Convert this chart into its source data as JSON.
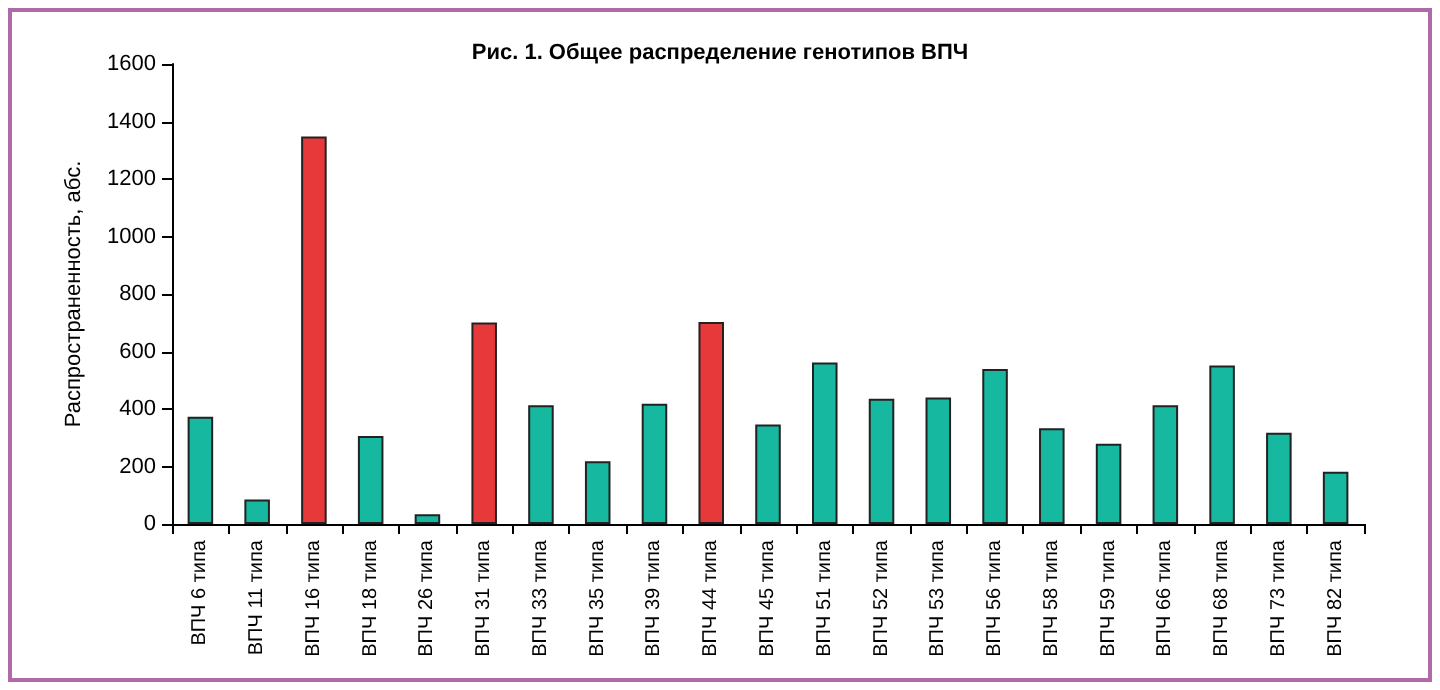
{
  "chart_data": {
    "type": "bar",
    "title": "Рис. 1. Общее распределение генотипов ВПЧ",
    "ylabel": "Распространенность, абс.",
    "categories": [
      "ВПЧ 6 типа",
      "ВПЧ 11 типа",
      "ВПЧ 16 типа",
      "ВПЧ 18 типа",
      "ВПЧ 26 типа",
      "ВПЧ 31 типа",
      "ВПЧ 33 типа",
      "ВПЧ 35 типа",
      "ВПЧ 39 типа",
      "ВПЧ 44 типа",
      "ВПЧ 45 типа",
      "ВПЧ 51 типа",
      "ВПЧ 52 типа",
      "ВПЧ 53 типа",
      "ВПЧ 56 типа",
      "ВПЧ 58 типа",
      "ВПЧ 59 типа",
      "ВПЧ 66 типа",
      "ВПЧ 68 типа",
      "ВПЧ 73 типа",
      "ВПЧ 82 типа"
    ],
    "values": [
      373,
      85,
      1348,
      306,
      34,
      701,
      413,
      218,
      418,
      703,
      346,
      562,
      436,
      440,
      539,
      333,
      279,
      413,
      551,
      317,
      182
    ],
    "colors": [
      "#17b8a0",
      "#17b8a0",
      "#e8393a",
      "#17b8a0",
      "#17b8a0",
      "#e8393a",
      "#17b8a0",
      "#17b8a0",
      "#17b8a0",
      "#e8393a",
      "#17b8a0",
      "#17b8a0",
      "#17b8a0",
      "#17b8a0",
      "#17b8a0",
      "#17b8a0",
      "#17b8a0",
      "#17b8a0",
      "#17b8a0",
      "#17b8a0",
      "#17b8a0"
    ],
    "ylim": [
      0,
      1600
    ],
    "yticks": [
      0,
      200,
      400,
      600,
      800,
      1000,
      1200,
      1400,
      1600
    ],
    "grid": false
  }
}
